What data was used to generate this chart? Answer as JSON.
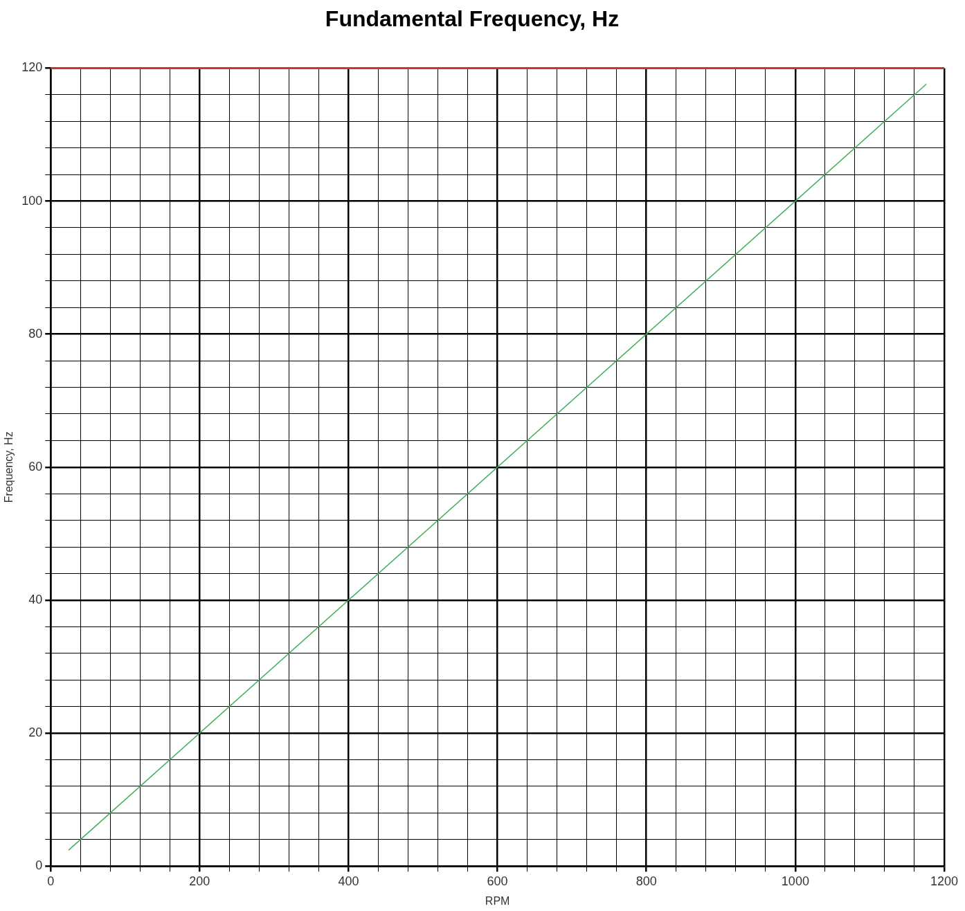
{
  "chart_data": {
    "type": "line",
    "title": "Fundamental Frequency, Hz",
    "xlabel": "RPM",
    "ylabel": "Frequency, Hz",
    "series": [
      {
        "color": "#3cb05a",
        "x": [
          24,
          1176
        ],
        "values": [
          2.4,
          117.6
        ]
      }
    ],
    "xlim": [
      0,
      1200
    ],
    "xticks": [
      0,
      {
        "value": 40,
        "label": null
      },
      {
        "value": 80,
        "label": null
      },
      {
        "value": 120,
        "label": null
      },
      {
        "value": 160,
        "label": null
      },
      200,
      {
        "value": 240,
        "label": null
      },
      {
        "value": 280,
        "label": null
      },
      {
        "value": 320,
        "label": null
      },
      {
        "value": 360,
        "label": null
      },
      400,
      {
        "value": 440,
        "label": null
      },
      {
        "value": 480,
        "label": null
      },
      {
        "value": 520,
        "label": null
      },
      {
        "value": 560,
        "label": null
      },
      600,
      {
        "value": 640,
        "label": null
      },
      {
        "value": 680,
        "label": null
      },
      {
        "value": 720,
        "label": null
      },
      {
        "value": 760,
        "label": null
      },
      800,
      {
        "value": 840,
        "label": null
      },
      {
        "value": 880,
        "label": null
      },
      {
        "value": 920,
        "label": null
      },
      {
        "value": 960,
        "label": null
      },
      1000,
      {
        "value": 1040,
        "label": null
      },
      {
        "value": 1080,
        "label": null
      },
      {
        "value": 1120,
        "label": null
      },
      {
        "value": 1160,
        "label": null
      },
      1200
    ],
    "ylim": [
      0,
      120
    ],
    "yticks": [
      0,
      {
        "value": 4,
        "label": null
      },
      {
        "value": 8,
        "label": null
      },
      {
        "value": 12,
        "label": null
      },
      {
        "value": 16,
        "label": null
      },
      20,
      {
        "value": 24,
        "label": null
      },
      {
        "value": 28,
        "label": null
      },
      {
        "value": 32,
        "label": null
      },
      {
        "value": 36,
        "label": null
      },
      40,
      {
        "value": 44,
        "label": null
      },
      {
        "value": 48,
        "label": null
      },
      {
        "value": 52,
        "label": null
      },
      {
        "value": 56,
        "label": null
      },
      60,
      {
        "value": 64,
        "label": null
      },
      {
        "value": 68,
        "label": null
      },
      {
        "value": 72,
        "label": null
      },
      {
        "value": 76,
        "label": null
      },
      80,
      {
        "value": 84,
        "label": null
      },
      {
        "value": 88,
        "label": null
      },
      {
        "value": 92,
        "label": null
      },
      {
        "value": 96,
        "label": null
      },
      100,
      {
        "value": 104,
        "label": null
      },
      {
        "value": 108,
        "label": null
      },
      {
        "value": 112,
        "label": null
      },
      {
        "value": 116,
        "label": null
      },
      120
    ],
    "grid": true,
    "ref_lines": [
      {
        "axis": "y",
        "value": 120,
        "color": "#c0392b"
      }
    ],
    "marker": "none",
    "line_style": "solid",
    "legend": false
  }
}
